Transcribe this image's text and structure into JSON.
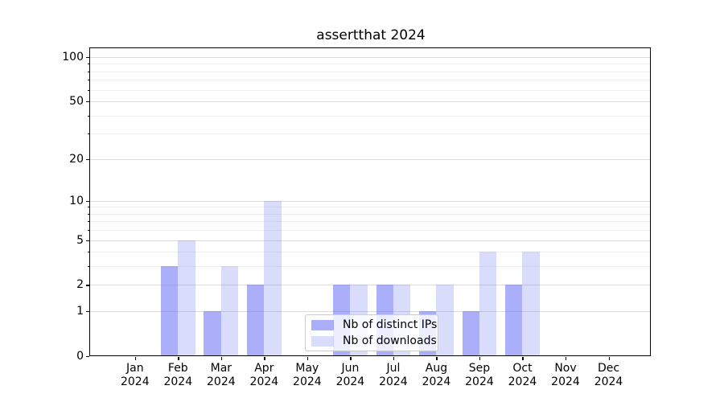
{
  "chart_data": {
    "type": "bar",
    "title": "assertthat 2024",
    "year_label": "2024",
    "categories": [
      "Jan",
      "Feb",
      "Mar",
      "Apr",
      "May",
      "Jun",
      "Jul",
      "Aug",
      "Sep",
      "Oct",
      "Nov",
      "Dec"
    ],
    "series": [
      {
        "name": "Nb of distinct IPs",
        "values": [
          0,
          3,
          1,
          2,
          0,
          2,
          2,
          1,
          1,
          2,
          0,
          0
        ],
        "color": "rgba(88, 94, 241, 0.50)"
      },
      {
        "name": "Nb of downloads",
        "values": [
          0,
          5,
          3,
          10,
          0,
          2,
          2,
          2,
          4,
          4,
          0,
          0
        ],
        "color": "rgba(88, 94, 241, 0.22)"
      }
    ],
    "yscale": "log1p",
    "ylim": [
      0,
      116
    ],
    "y_major_ticks": [
      0,
      1,
      2,
      5,
      10,
      20,
      50,
      100
    ],
    "y_minor_ticks": [
      3,
      4,
      6,
      7,
      8,
      9,
      30,
      40,
      60,
      70,
      80,
      90
    ],
    "xlabel": "",
    "ylabel": "",
    "grid": true,
    "legend": {
      "position": "lower-center",
      "entries": [
        "Nb of distinct IPs",
        "Nb of downloads"
      ]
    }
  },
  "colors": {
    "grid_major": "#dcdcdc",
    "grid_minor": "#f0f0f0",
    "spine": "#000000",
    "text": "#000000",
    "background": "#ffffff",
    "legend_bg": "rgba(255,255,255,0.8)",
    "legend_border": "#cccccc"
  }
}
